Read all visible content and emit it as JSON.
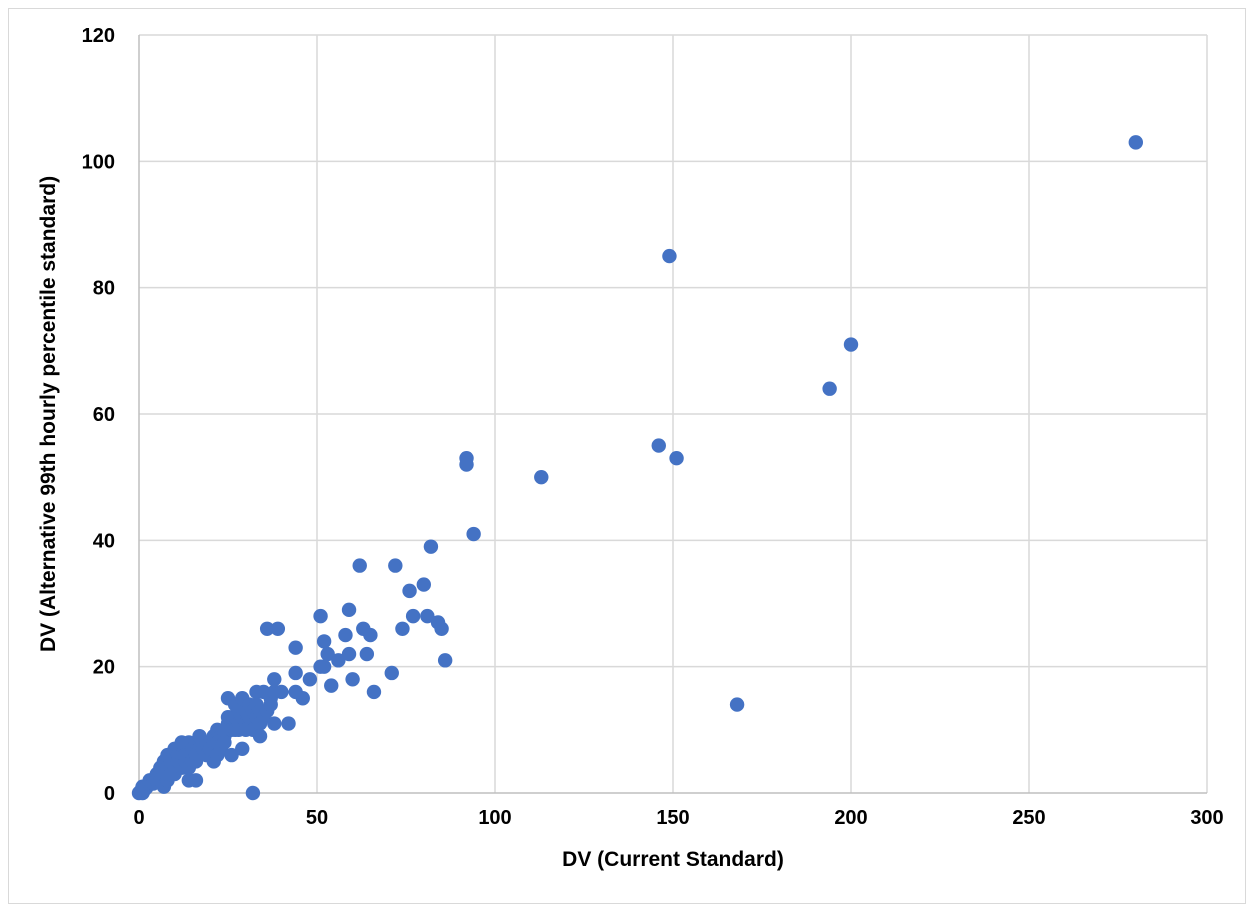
{
  "chart_data": {
    "type": "scatter",
    "title": "",
    "xlabel": "DV (Current Standard)",
    "ylabel": "DV (Alternative 99th hourly percentile standard)",
    "xlim": [
      0,
      300
    ],
    "ylim": [
      0,
      120
    ],
    "x_ticks": [
      0,
      50,
      100,
      150,
      200,
      250,
      300
    ],
    "y_ticks": [
      0,
      20,
      40,
      60,
      80,
      100,
      120
    ],
    "grid": true,
    "legend": "none",
    "marker_color": "#4472C4",
    "series": [
      {
        "points": [
          [
            0,
            0
          ],
          [
            0.5,
            0.3
          ],
          [
            1,
            0
          ],
          [
            1,
            1
          ],
          [
            1.5,
            0.5
          ],
          [
            2,
            0.8
          ],
          [
            2,
            1
          ],
          [
            3,
            1.5
          ],
          [
            3,
            2
          ],
          [
            4,
            2
          ],
          [
            4,
            1.5
          ],
          [
            5,
            2.5
          ],
          [
            5,
            3
          ],
          [
            5,
            2
          ],
          [
            6,
            3
          ],
          [
            6,
            4
          ],
          [
            6,
            2
          ],
          [
            7,
            3
          ],
          [
            7,
            5
          ],
          [
            7,
            1
          ],
          [
            8,
            4
          ],
          [
            8,
            6
          ],
          [
            8,
            2
          ],
          [
            8,
            3
          ],
          [
            9,
            4
          ],
          [
            9,
            5
          ],
          [
            9,
            3
          ],
          [
            10,
            5
          ],
          [
            10,
            7
          ],
          [
            10,
            4
          ],
          [
            10,
            3
          ],
          [
            11,
            6
          ],
          [
            11,
            5
          ],
          [
            12,
            6
          ],
          [
            12,
            8
          ],
          [
            12,
            4
          ],
          [
            13,
            5
          ],
          [
            13,
            7
          ],
          [
            13,
            6
          ],
          [
            14,
            6
          ],
          [
            14,
            8
          ],
          [
            14,
            2
          ],
          [
            14,
            4
          ],
          [
            15,
            6
          ],
          [
            15,
            5
          ],
          [
            15,
            7
          ],
          [
            16,
            6
          ],
          [
            16,
            5
          ],
          [
            16,
            8
          ],
          [
            16,
            2
          ],
          [
            17,
            7
          ],
          [
            17,
            6
          ],
          [
            17,
            9
          ],
          [
            18,
            7
          ],
          [
            18,
            8
          ],
          [
            19,
            8
          ],
          [
            19,
            6
          ],
          [
            20,
            8
          ],
          [
            20,
            7
          ],
          [
            21,
            8
          ],
          [
            21,
            9
          ],
          [
            21,
            5
          ],
          [
            22,
            8
          ],
          [
            22,
            10
          ],
          [
            22,
            6
          ],
          [
            23,
            9
          ],
          [
            23,
            7
          ],
          [
            24,
            9
          ],
          [
            24,
            10
          ],
          [
            24,
            8
          ],
          [
            25,
            11
          ],
          [
            25,
            12
          ],
          [
            25,
            15
          ],
          [
            26,
            10
          ],
          [
            26,
            12
          ],
          [
            26,
            6
          ],
          [
            27,
            10
          ],
          [
            27,
            12
          ],
          [
            27,
            14
          ],
          [
            28,
            11
          ],
          [
            28,
            13
          ],
          [
            28,
            10
          ],
          [
            29,
            12
          ],
          [
            29,
            15
          ],
          [
            29,
            7
          ],
          [
            30,
            11
          ],
          [
            30,
            13
          ],
          [
            30,
            10
          ],
          [
            31,
            12
          ],
          [
            31,
            14
          ],
          [
            32,
            13
          ],
          [
            32,
            10
          ],
          [
            32,
            0
          ],
          [
            33,
            12
          ],
          [
            33,
            16
          ],
          [
            33,
            14
          ],
          [
            34,
            11
          ],
          [
            34,
            13
          ],
          [
            34,
            9
          ],
          [
            35,
            12
          ],
          [
            35,
            16
          ],
          [
            36,
            13
          ],
          [
            36,
            26
          ],
          [
            37,
            14
          ],
          [
            37,
            15
          ],
          [
            38,
            18
          ],
          [
            38,
            16
          ],
          [
            38,
            11
          ],
          [
            39,
            26
          ],
          [
            40,
            16
          ],
          [
            42,
            11
          ],
          [
            44,
            23
          ],
          [
            44,
            19
          ],
          [
            44,
            16
          ],
          [
            46,
            15
          ],
          [
            48,
            18
          ],
          [
            51,
            28
          ],
          [
            51,
            20
          ],
          [
            52,
            24
          ],
          [
            52,
            20
          ],
          [
            53,
            22
          ],
          [
            54,
            17
          ],
          [
            56,
            21
          ],
          [
            58,
            25
          ],
          [
            59,
            29
          ],
          [
            59,
            22
          ],
          [
            60,
            18
          ],
          [
            62,
            36
          ],
          [
            63,
            26
          ],
          [
            64,
            22
          ],
          [
            65,
            25
          ],
          [
            66,
            16
          ],
          [
            71,
            19
          ],
          [
            72,
            36
          ],
          [
            74,
            26
          ],
          [
            76,
            32
          ],
          [
            77,
            28
          ],
          [
            80,
            33
          ],
          [
            81,
            28
          ],
          [
            82,
            39
          ],
          [
            84,
            27
          ],
          [
            85,
            26
          ],
          [
            86,
            21
          ],
          [
            92,
            53
          ],
          [
            92,
            52
          ],
          [
            94,
            41
          ],
          [
            113,
            50
          ],
          [
            146,
            55
          ],
          [
            149,
            85
          ],
          [
            151,
            53
          ],
          [
            168,
            14
          ],
          [
            194,
            64
          ],
          [
            200,
            71
          ],
          [
            280,
            103
          ]
        ]
      }
    ]
  }
}
